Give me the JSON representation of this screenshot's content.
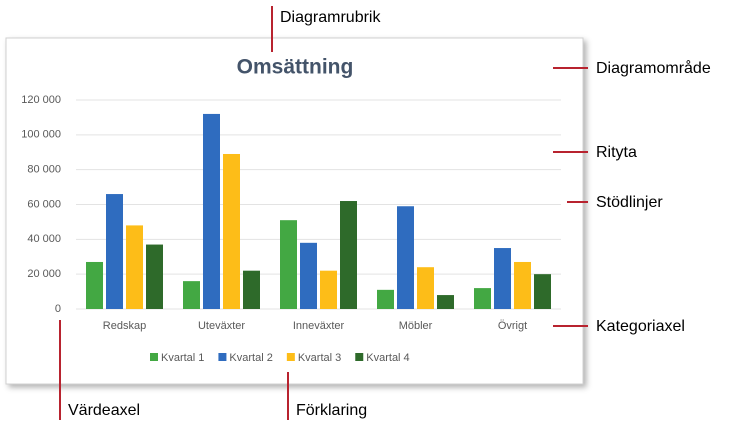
{
  "chart_data": {
    "type": "bar",
    "title": "Omsättning",
    "categories": [
      "Redskap",
      "Uteväxter",
      "Inneväxter",
      "Möbler",
      "Övrigt"
    ],
    "series": [
      {
        "name": "Kvartal 1",
        "color": "#43a843",
        "values": [
          27000,
          16000,
          51000,
          11000,
          12000
        ]
      },
      {
        "name": "Kvartal 2",
        "color": "#2f6cbf",
        "values": [
          66000,
          112000,
          38000,
          59000,
          35000
        ]
      },
      {
        "name": "Kvartal 3",
        "color": "#fdbd18",
        "values": [
          48000,
          89000,
          22000,
          24000,
          27000
        ]
      },
      {
        "name": "Kvartal 4",
        "color": "#2e6a2a",
        "values": [
          37000,
          22000,
          62000,
          8000,
          20000
        ]
      }
    ],
    "ylim": [
      0,
      120000
    ],
    "yticks": [
      0,
      {
        "value": 20000,
        "label": "20 000"
      },
      {
        "value": 40000,
        "label": "40 000"
      },
      {
        "value": 60000,
        "label": "60 000"
      },
      {
        "value": 80000,
        "label": "80 000"
      },
      {
        "value": 100000,
        "label": "100 000"
      },
      {
        "value": 120000,
        "label": "120 000"
      }
    ],
    "grid": true,
    "legend": "bottom",
    "annotations": [
      "Diagramrubrik",
      "Diagramområde",
      "Rityta",
      "Stödlinjer",
      "Kategoriaxel",
      "Värdeaxel",
      "Förklaring"
    ]
  }
}
